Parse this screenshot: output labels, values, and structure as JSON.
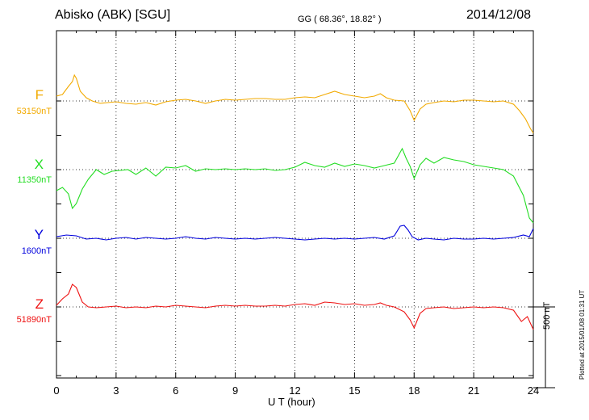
{
  "header": {
    "station": "Abisko (ABK)  [SGU]",
    "coords": "GG ( 68.36°,  18.82° )",
    "date": "2014/12/08"
  },
  "footer": {
    "plotted": "Plotted at 2015/01/08 01:31  UT"
  },
  "chart_data": {
    "type": "line",
    "title": "Abisko (ABK)  [SGU]",
    "xlabel": "U T (hour)",
    "ylabel": "",
    "xlim": [
      0,
      24
    ],
    "x_ticks": [
      "0",
      "3",
      "6",
      "9",
      "12",
      "15",
      "18",
      "21",
      "24"
    ],
    "scale_bar_label": "500 nT",
    "scale_bar_nT": 500,
    "grid": true,
    "series": [
      {
        "name": "F",
        "baseline_label": "53150nT",
        "baseline_nT": 53150,
        "color": "#f2aa00",
        "offset_nT": 0,
        "points": [
          [
            0,
            30
          ],
          [
            0.3,
            40
          ],
          [
            0.6,
            90
          ],
          [
            0.8,
            120
          ],
          [
            0.9,
            160
          ],
          [
            1.0,
            140
          ],
          [
            1.2,
            60
          ],
          [
            1.5,
            20
          ],
          [
            1.8,
            0
          ],
          [
            2.2,
            -15
          ],
          [
            2.6,
            -10
          ],
          [
            3.0,
            -5
          ],
          [
            3.5,
            -15
          ],
          [
            4.0,
            -20
          ],
          [
            4.5,
            -10
          ],
          [
            5.0,
            -25
          ],
          [
            5.5,
            -5
          ],
          [
            6.0,
            5
          ],
          [
            6.5,
            10
          ],
          [
            7.0,
            0
          ],
          [
            7.5,
            -15
          ],
          [
            8.0,
            0
          ],
          [
            8.5,
            10
          ],
          [
            9.0,
            5
          ],
          [
            9.5,
            10
          ],
          [
            10.0,
            15
          ],
          [
            10.5,
            15
          ],
          [
            11.0,
            10
          ],
          [
            11.5,
            10
          ],
          [
            12.0,
            20
          ],
          [
            12.5,
            25
          ],
          [
            13.0,
            20
          ],
          [
            13.5,
            40
          ],
          [
            14.0,
            60
          ],
          [
            14.5,
            40
          ],
          [
            15.0,
            30
          ],
          [
            15.5,
            20
          ],
          [
            16.0,
            30
          ],
          [
            16.3,
            45
          ],
          [
            16.6,
            20
          ],
          [
            17.0,
            5
          ],
          [
            17.5,
            0
          ],
          [
            17.8,
            -60
          ],
          [
            18.0,
            -120
          ],
          [
            18.3,
            -50
          ],
          [
            18.6,
            -20
          ],
          [
            19.0,
            -10
          ],
          [
            19.5,
            0
          ],
          [
            20.0,
            -5
          ],
          [
            20.5,
            5
          ],
          [
            21.0,
            5
          ],
          [
            21.5,
            0
          ],
          [
            22.0,
            -5
          ],
          [
            22.5,
            0
          ],
          [
            23.0,
            -20
          ],
          [
            23.3,
            -60
          ],
          [
            23.6,
            -110
          ],
          [
            23.85,
            -170
          ],
          [
            24.0,
            -200
          ]
        ]
      },
      {
        "name": "X",
        "baseline_label": "11350nT",
        "baseline_nT": 11350,
        "color": "#22dd22",
        "offset_nT": -425,
        "points": [
          [
            0,
            -130
          ],
          [
            0.3,
            -110
          ],
          [
            0.6,
            -150
          ],
          [
            0.8,
            -240
          ],
          [
            1.0,
            -210
          ],
          [
            1.3,
            -120
          ],
          [
            1.6,
            -60
          ],
          [
            2.0,
            0
          ],
          [
            2.4,
            -30
          ],
          [
            2.8,
            -10
          ],
          [
            3.2,
            -5
          ],
          [
            3.6,
            0
          ],
          [
            4.0,
            -30
          ],
          [
            4.5,
            10
          ],
          [
            5.0,
            -40
          ],
          [
            5.5,
            15
          ],
          [
            6.0,
            10
          ],
          [
            6.5,
            25
          ],
          [
            7.0,
            -10
          ],
          [
            7.5,
            5
          ],
          [
            8.0,
            0
          ],
          [
            8.5,
            5
          ],
          [
            9.0,
            0
          ],
          [
            9.5,
            5
          ],
          [
            10.0,
            0
          ],
          [
            10.5,
            5
          ],
          [
            11.0,
            -5
          ],
          [
            11.5,
            0
          ],
          [
            12.0,
            15
          ],
          [
            12.5,
            45
          ],
          [
            13.0,
            25
          ],
          [
            13.5,
            15
          ],
          [
            14.0,
            40
          ],
          [
            14.5,
            20
          ],
          [
            15.0,
            35
          ],
          [
            15.5,
            25
          ],
          [
            16.0,
            10
          ],
          [
            16.5,
            25
          ],
          [
            17.0,
            40
          ],
          [
            17.4,
            130
          ],
          [
            17.6,
            70
          ],
          [
            17.8,
            20
          ],
          [
            18.0,
            -55
          ],
          [
            18.3,
            30
          ],
          [
            18.6,
            70
          ],
          [
            19.0,
            40
          ],
          [
            19.5,
            75
          ],
          [
            20.0,
            60
          ],
          [
            20.5,
            50
          ],
          [
            21.0,
            30
          ],
          [
            21.5,
            20
          ],
          [
            22.0,
            10
          ],
          [
            22.5,
            0
          ],
          [
            23.0,
            -40
          ],
          [
            23.5,
            -160
          ],
          [
            23.8,
            -300
          ],
          [
            24.0,
            -330
          ]
        ]
      },
      {
        "name": "Y",
        "baseline_label": "1600nT",
        "baseline_nT": 1600,
        "color": "#0000dd",
        "offset_nT": -850,
        "points": [
          [
            0,
            10
          ],
          [
            0.5,
            20
          ],
          [
            1.0,
            15
          ],
          [
            1.5,
            -5
          ],
          [
            2.0,
            0
          ],
          [
            2.5,
            -10
          ],
          [
            3.0,
            0
          ],
          [
            3.5,
            5
          ],
          [
            4.0,
            -5
          ],
          [
            4.5,
            5
          ],
          [
            5.0,
            0
          ],
          [
            5.5,
            -5
          ],
          [
            6.0,
            0
          ],
          [
            6.5,
            10
          ],
          [
            7.0,
            0
          ],
          [
            7.5,
            -5
          ],
          [
            8.0,
            5
          ],
          [
            8.5,
            0
          ],
          [
            9.0,
            -5
          ],
          [
            9.5,
            0
          ],
          [
            10.0,
            -5
          ],
          [
            10.5,
            0
          ],
          [
            11.0,
            5
          ],
          [
            11.5,
            0
          ],
          [
            12.0,
            -5
          ],
          [
            12.5,
            -10
          ],
          [
            13.0,
            -5
          ],
          [
            13.5,
            0
          ],
          [
            14.0,
            -5
          ],
          [
            14.5,
            0
          ],
          [
            15.0,
            -5
          ],
          [
            15.5,
            0
          ],
          [
            16.0,
            5
          ],
          [
            16.5,
            -5
          ],
          [
            17.0,
            15
          ],
          [
            17.3,
            75
          ],
          [
            17.5,
            80
          ],
          [
            17.7,
            50
          ],
          [
            17.9,
            10
          ],
          [
            18.2,
            -10
          ],
          [
            18.6,
            0
          ],
          [
            19.0,
            -5
          ],
          [
            19.5,
            -10
          ],
          [
            20.0,
            0
          ],
          [
            20.5,
            -5
          ],
          [
            21.0,
            -5
          ],
          [
            21.5,
            0
          ],
          [
            22.0,
            -5
          ],
          [
            22.5,
            0
          ],
          [
            23.0,
            5
          ],
          [
            23.5,
            20
          ],
          [
            23.8,
            10
          ],
          [
            24.0,
            60
          ]
        ]
      },
      {
        "name": "Z",
        "baseline_label": "51890nT",
        "baseline_nT": 51890,
        "color": "#ee1111",
        "offset_nT": -1275,
        "points": [
          [
            0,
            10
          ],
          [
            0.3,
            50
          ],
          [
            0.6,
            80
          ],
          [
            0.8,
            140
          ],
          [
            1.0,
            120
          ],
          [
            1.3,
            30
          ],
          [
            1.6,
            0
          ],
          [
            2.0,
            -5
          ],
          [
            2.5,
            0
          ],
          [
            3.0,
            5
          ],
          [
            3.5,
            -5
          ],
          [
            4.0,
            0
          ],
          [
            4.5,
            -5
          ],
          [
            5.0,
            5
          ],
          [
            5.5,
            0
          ],
          [
            6.0,
            10
          ],
          [
            6.5,
            5
          ],
          [
            7.0,
            0
          ],
          [
            7.5,
            -5
          ],
          [
            8.0,
            5
          ],
          [
            8.5,
            10
          ],
          [
            9.0,
            5
          ],
          [
            9.5,
            10
          ],
          [
            10.0,
            5
          ],
          [
            10.5,
            5
          ],
          [
            11.0,
            10
          ],
          [
            11.5,
            5
          ],
          [
            12.0,
            15
          ],
          [
            12.5,
            20
          ],
          [
            13.0,
            10
          ],
          [
            13.5,
            30
          ],
          [
            14.0,
            25
          ],
          [
            14.5,
            15
          ],
          [
            15.0,
            20
          ],
          [
            15.5,
            10
          ],
          [
            16.0,
            15
          ],
          [
            16.3,
            25
          ],
          [
            16.6,
            10
          ],
          [
            17.0,
            0
          ],
          [
            17.5,
            -30
          ],
          [
            17.8,
            -80
          ],
          [
            18.0,
            -130
          ],
          [
            18.3,
            -40
          ],
          [
            18.6,
            -10
          ],
          [
            19.0,
            -5
          ],
          [
            19.5,
            0
          ],
          [
            20.0,
            -10
          ],
          [
            20.5,
            -5
          ],
          [
            21.0,
            0
          ],
          [
            21.5,
            -5
          ],
          [
            22.0,
            0
          ],
          [
            22.5,
            -5
          ],
          [
            23.0,
            -20
          ],
          [
            23.4,
            -90
          ],
          [
            23.7,
            -60
          ],
          [
            24.0,
            -140
          ]
        ]
      }
    ]
  }
}
